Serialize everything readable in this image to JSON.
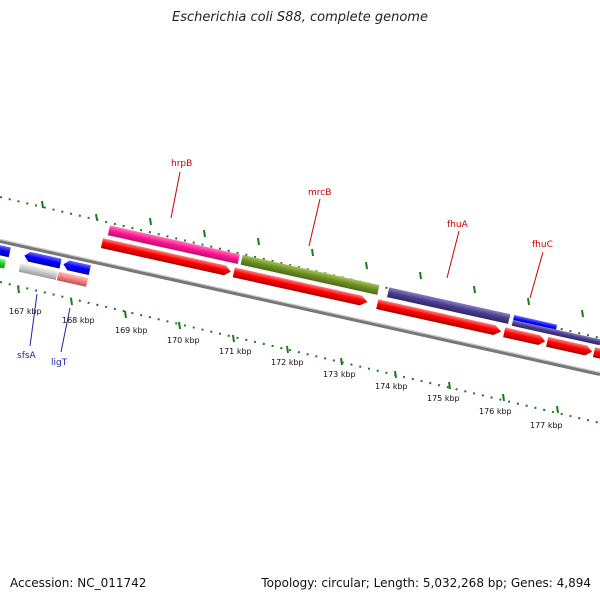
{
  "title": "Escherichia coli S88, complete genome",
  "footer": {
    "accession": "Accession: NC_011742",
    "summary": "Topology: circular; Length: 5,032,268 bp; Genes: 4,894"
  },
  "ticks": [
    "167 kbp",
    "168 kbp",
    "169 kbp",
    "170 kbp",
    "171 kbp",
    "172 kbp",
    "173 kbp",
    "174 kbp",
    "175 kbp",
    "176 kbp",
    "177 kbp"
  ],
  "genes_above": [
    "hrpB",
    "mrcB",
    "fhuA",
    "fhuC"
  ],
  "genes_below": [
    "sfsA",
    "ligT"
  ],
  "colors": {
    "cds_red": "#ff0000",
    "hrpB": "#ff1493",
    "mrcB": "#6b8e23",
    "fhuA": "#483d8b",
    "fhuC": "#0000ff",
    "sfsA_region": "#0000ff",
    "ligT": "#f08080",
    "backbone": "#808080",
    "tick": "#1a7a1a"
  }
}
